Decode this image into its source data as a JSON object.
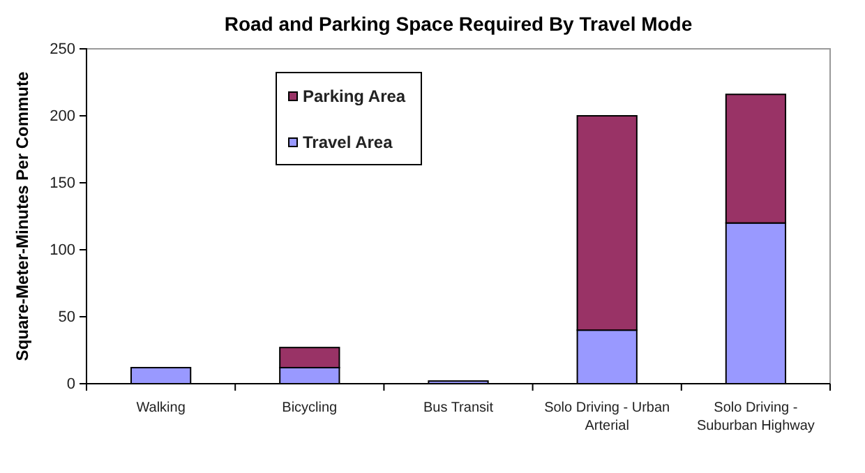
{
  "chart_data": {
    "type": "bar",
    "title": "Road and Parking Space Required By Travel Mode",
    "ylabel": "Square-Meter-Minutes Per Commute",
    "categories": [
      "Walking",
      "Bicycling",
      "Bus Transit",
      "Solo Driving - Urban Arterial",
      "Solo Driving - Suburban Highway"
    ],
    "stacked": true,
    "series": [
      {
        "name": "Travel Area",
        "color": "#9999ff",
        "values": [
          12,
          12,
          2,
          40,
          120
        ]
      },
      {
        "name": "Parking Area",
        "color": "#993366",
        "values": [
          null,
          15,
          null,
          160,
          96
        ]
      }
    ],
    "ylim": [
      0,
      250
    ],
    "yticks": [
      0,
      50,
      100,
      150,
      200,
      250
    ],
    "grid": false,
    "legend": "top"
  }
}
